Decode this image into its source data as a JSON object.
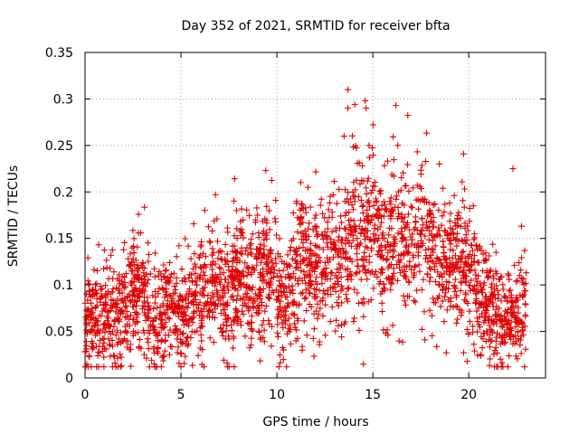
{
  "chart_data": {
    "type": "scatter",
    "title": "Day 352 of 2021, SRMTID for receiver bfta",
    "xlabel": "GPS time / hours",
    "ylabel": "SRMTID / TECUs",
    "xlim": [
      0,
      24
    ],
    "ylim": [
      0,
      0.35
    ],
    "xticks": [
      0,
      5,
      10,
      15,
      20
    ],
    "yticks": [
      0,
      0.05,
      0.1,
      0.15,
      0.2,
      0.25,
      0.3,
      0.35
    ],
    "xtick_labels": [
      "0",
      "5",
      "10",
      "15",
      "20"
    ],
    "ytick_labels": [
      "0",
      "0.05",
      "0.1",
      "0.15",
      "0.2",
      "0.25",
      "0.3",
      "0.35"
    ],
    "grid": true,
    "marker": "+",
    "color": "#e00000",
    "series": [
      {
        "name": "SRMTID",
        "x": [
          0.0,
          0.25,
          0.5,
          0.75,
          1.0,
          1.25,
          1.5,
          1.75,
          2.0,
          2.25,
          2.5,
          2.75,
          3.0,
          3.25,
          3.5,
          3.75,
          4.0,
          4.25,
          4.5,
          4.75,
          5.0,
          5.25,
          5.5,
          5.75,
          6.0,
          6.25,
          6.5,
          6.75,
          7.0,
          7.25,
          7.5,
          7.75,
          8.0,
          8.25,
          8.5,
          8.75,
          9.0,
          9.25,
          9.5,
          9.75,
          10.0,
          10.25,
          10.5,
          10.75,
          11.0,
          11.25,
          11.5,
          11.75,
          12.0,
          12.25,
          12.5,
          12.75,
          13.0,
          13.25,
          13.5,
          13.75,
          14.0,
          14.25,
          14.5,
          14.75,
          15.0,
          15.25,
          15.5,
          15.75,
          16.0,
          16.25,
          16.5,
          16.75,
          17.0,
          17.25,
          17.5,
          17.75,
          18.0,
          18.25,
          18.5,
          18.75,
          19.0,
          19.25,
          19.5,
          19.75,
          20.0,
          20.25,
          20.5,
          20.75,
          21.0,
          21.25,
          21.5,
          21.75,
          22.0,
          22.25,
          22.5,
          22.75,
          23.0
        ],
        "y": [
          0.06,
          0.07,
          0.065,
          0.06,
          0.07,
          0.06,
          0.065,
          0.055,
          0.07,
          0.08,
          0.09,
          0.1,
          0.1,
          0.07,
          0.06,
          0.05,
          0.065,
          0.075,
          0.08,
          0.07,
          0.065,
          0.06,
          0.075,
          0.085,
          0.09,
          0.085,
          0.09,
          0.1,
          0.08,
          0.085,
          0.09,
          0.1,
          0.11,
          0.1,
          0.095,
          0.11,
          0.12,
          0.11,
          0.115,
          0.12,
          0.1,
          0.08,
          0.07,
          0.11,
          0.12,
          0.13,
          0.12,
          0.11,
          0.12,
          0.115,
          0.11,
          0.125,
          0.13,
          0.13,
          0.125,
          0.14,
          0.15,
          0.14,
          0.16,
          0.175,
          0.17,
          0.155,
          0.135,
          0.14,
          0.15,
          0.17,
          0.155,
          0.13,
          0.14,
          0.15,
          0.16,
          0.155,
          0.15,
          0.135,
          0.13,
          0.125,
          0.12,
          0.12,
          0.125,
          0.115,
          0.11,
          0.105,
          0.095,
          0.085,
          0.08,
          0.07,
          0.065,
          0.06,
          0.07,
          0.06,
          0.065,
          0.07,
          0.075
        ]
      }
    ]
  }
}
